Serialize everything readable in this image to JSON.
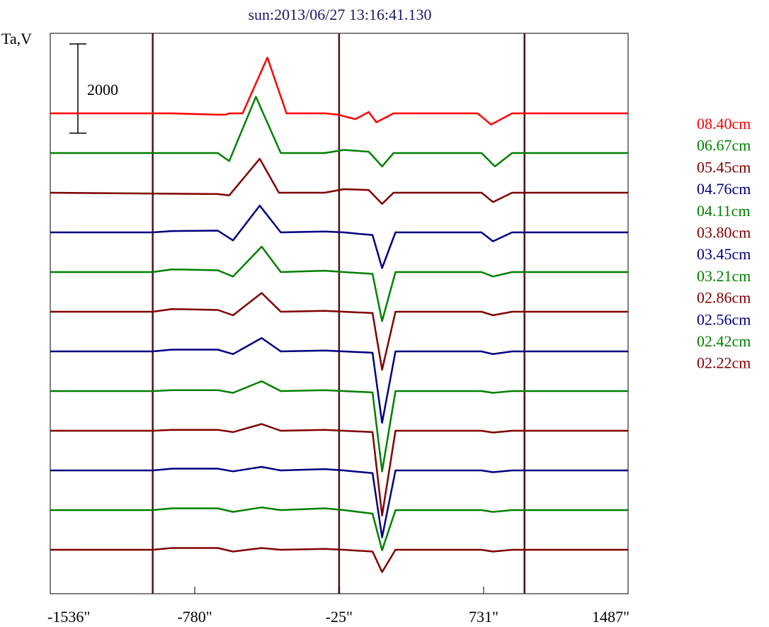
{
  "chart_data": {
    "type": "line",
    "title": "sun:2013/06/27 13:16:41.130",
    "ylabel": "Ta,V",
    "scale_bar": {
      "label": "2000",
      "value": 2000
    },
    "x_ticks": [
      -1536,
      -780,
      -25,
      731,
      1487
    ],
    "x_tick_labels": [
      "-1536\"",
      "-780\"",
      "-25\"",
      "731\"",
      "1487\""
    ],
    "xlim": [
      -1536,
      1487
    ],
    "vertical_markers": [
      -1000,
      -25,
      945
    ],
    "colors": {
      "red": "#ff0000",
      "green": "#008000",
      "darkred": "#800000",
      "blue": "#000080",
      "marker": "#4a1414"
    },
    "series": [
      {
        "name": "08.40cm",
        "color": "#ff0000",
        "features": [
          [
            -1536,
            0
          ],
          [
            -1000,
            0
          ],
          [
            -900,
            0
          ],
          [
            -660,
            -30
          ],
          [
            -620,
            -30
          ],
          [
            -600,
            0
          ],
          [
            -530,
            0
          ],
          [
            -400,
            1250
          ],
          [
            -300,
            0
          ],
          [
            -100,
            0
          ],
          [
            -30,
            -30
          ],
          [
            60,
            -130
          ],
          [
            130,
            30
          ],
          [
            170,
            -200
          ],
          [
            260,
            0
          ],
          [
            700,
            0
          ],
          [
            770,
            -250
          ],
          [
            880,
            0
          ],
          [
            945,
            0
          ],
          [
            1487,
            0
          ]
        ]
      },
      {
        "name": "06.67cm",
        "color": "#008000",
        "features": [
          [
            -1536,
            0
          ],
          [
            -660,
            0
          ],
          [
            -600,
            -180
          ],
          [
            -460,
            1260
          ],
          [
            -330,
            0
          ],
          [
            -100,
            0
          ],
          [
            0,
            70
          ],
          [
            130,
            30
          ],
          [
            200,
            -300
          ],
          [
            260,
            0
          ],
          [
            720,
            0
          ],
          [
            790,
            -300
          ],
          [
            880,
            0
          ],
          [
            1487,
            0
          ]
        ]
      },
      {
        "name": "05.45cm",
        "color": "#800000",
        "features": [
          [
            -1536,
            0
          ],
          [
            -660,
            -30
          ],
          [
            -600,
            -60
          ],
          [
            -440,
            760
          ],
          [
            -340,
            0
          ],
          [
            -100,
            0
          ],
          [
            0,
            80
          ],
          [
            130,
            60
          ],
          [
            200,
            -250
          ],
          [
            260,
            0
          ],
          [
            720,
            0
          ],
          [
            780,
            -210
          ],
          [
            880,
            0
          ],
          [
            1487,
            0
          ]
        ]
      },
      {
        "name": "04.76cm",
        "color": "#000080",
        "features": [
          [
            -1536,
            0
          ],
          [
            -1000,
            0
          ],
          [
            -900,
            30
          ],
          [
            -660,
            40
          ],
          [
            -580,
            -180
          ],
          [
            -440,
            600
          ],
          [
            -330,
            0
          ],
          [
            -100,
            20
          ],
          [
            0,
            0
          ],
          [
            150,
            -60
          ],
          [
            200,
            -800
          ],
          [
            270,
            0
          ],
          [
            720,
            0
          ],
          [
            780,
            -200
          ],
          [
            880,
            0
          ],
          [
            1487,
            0
          ]
        ]
      },
      {
        "name": "04.11cm",
        "color": "#008000",
        "features": [
          [
            -1536,
            0
          ],
          [
            -1000,
            0
          ],
          [
            -900,
            60
          ],
          [
            -660,
            40
          ],
          [
            -580,
            -100
          ],
          [
            -430,
            570
          ],
          [
            -330,
            0
          ],
          [
            -100,
            30
          ],
          [
            0,
            0
          ],
          [
            150,
            -40
          ],
          [
            200,
            -1100
          ],
          [
            270,
            0
          ],
          [
            720,
            0
          ],
          [
            780,
            -100
          ],
          [
            880,
            0
          ],
          [
            1487,
            0
          ]
        ]
      },
      {
        "name": "03.80cm",
        "color": "#800000",
        "features": [
          [
            -1536,
            0
          ],
          [
            -1000,
            0
          ],
          [
            -900,
            60
          ],
          [
            -660,
            40
          ],
          [
            -580,
            -80
          ],
          [
            -430,
            420
          ],
          [
            -330,
            0
          ],
          [
            -100,
            20
          ],
          [
            0,
            0
          ],
          [
            150,
            -30
          ],
          [
            200,
            -1300
          ],
          [
            270,
            0
          ],
          [
            720,
            0
          ],
          [
            780,
            -80
          ],
          [
            880,
            0
          ],
          [
            1487,
            0
          ]
        ]
      },
      {
        "name": "03.45cm",
        "color": "#000080",
        "features": [
          [
            -1536,
            0
          ],
          [
            -1000,
            0
          ],
          [
            -900,
            40
          ],
          [
            -660,
            40
          ],
          [
            -580,
            -60
          ],
          [
            -430,
            300
          ],
          [
            -330,
            0
          ],
          [
            -100,
            20
          ],
          [
            0,
            0
          ],
          [
            150,
            -30
          ],
          [
            200,
            -1600
          ],
          [
            270,
            0
          ],
          [
            720,
            0
          ],
          [
            780,
            -60
          ],
          [
            880,
            0
          ],
          [
            1487,
            0
          ]
        ]
      },
      {
        "name": "03.21cm",
        "color": "#008000",
        "features": [
          [
            -1536,
            0
          ],
          [
            -1000,
            0
          ],
          [
            -900,
            20
          ],
          [
            -660,
            20
          ],
          [
            -580,
            -40
          ],
          [
            -430,
            220
          ],
          [
            -330,
            0
          ],
          [
            -100,
            20
          ],
          [
            0,
            0
          ],
          [
            150,
            -30
          ],
          [
            200,
            -1800
          ],
          [
            270,
            0
          ],
          [
            720,
            0
          ],
          [
            780,
            -40
          ],
          [
            880,
            0
          ],
          [
            1487,
            0
          ]
        ]
      },
      {
        "name": "02.86cm",
        "color": "#800000",
        "features": [
          [
            -1536,
            0
          ],
          [
            -1000,
            0
          ],
          [
            -900,
            20
          ],
          [
            -660,
            20
          ],
          [
            -580,
            -30
          ],
          [
            -430,
            150
          ],
          [
            -330,
            0
          ],
          [
            -100,
            20
          ],
          [
            0,
            0
          ],
          [
            150,
            -30
          ],
          [
            200,
            -1900
          ],
          [
            270,
            0
          ],
          [
            720,
            0
          ],
          [
            780,
            -40
          ],
          [
            880,
            0
          ],
          [
            1487,
            0
          ]
        ]
      },
      {
        "name": "02.56cm",
        "color": "#000080",
        "features": [
          [
            -1536,
            0
          ],
          [
            -1000,
            0
          ],
          [
            -900,
            40
          ],
          [
            -660,
            40
          ],
          [
            -580,
            -20
          ],
          [
            -430,
            80
          ],
          [
            -330,
            0
          ],
          [
            -100,
            30
          ],
          [
            0,
            0
          ],
          [
            150,
            -60
          ],
          [
            200,
            -1500
          ],
          [
            270,
            0
          ],
          [
            720,
            0
          ],
          [
            780,
            -40
          ],
          [
            880,
            0
          ],
          [
            1487,
            0
          ]
        ]
      },
      {
        "name": "02.42cm",
        "color": "#008000",
        "features": [
          [
            -1536,
            0
          ],
          [
            -1000,
            0
          ],
          [
            -900,
            40
          ],
          [
            -660,
            40
          ],
          [
            -580,
            -40
          ],
          [
            -430,
            60
          ],
          [
            -330,
            0
          ],
          [
            -100,
            40
          ],
          [
            0,
            0
          ],
          [
            150,
            -80
          ],
          [
            200,
            -900
          ],
          [
            270,
            0
          ],
          [
            720,
            0
          ],
          [
            780,
            -40
          ],
          [
            880,
            0
          ],
          [
            1487,
            0
          ]
        ]
      },
      {
        "name": "02.22cm",
        "color": "#800000",
        "features": [
          [
            -1536,
            0
          ],
          [
            -1000,
            0
          ],
          [
            -900,
            40
          ],
          [
            -660,
            40
          ],
          [
            -580,
            -40
          ],
          [
            -430,
            40
          ],
          [
            -330,
            0
          ],
          [
            -100,
            20
          ],
          [
            0,
            0
          ],
          [
            150,
            -40
          ],
          [
            200,
            -500
          ],
          [
            270,
            0
          ],
          [
            720,
            0
          ],
          [
            780,
            -40
          ],
          [
            880,
            0
          ],
          [
            1487,
            0
          ]
        ]
      }
    ]
  }
}
